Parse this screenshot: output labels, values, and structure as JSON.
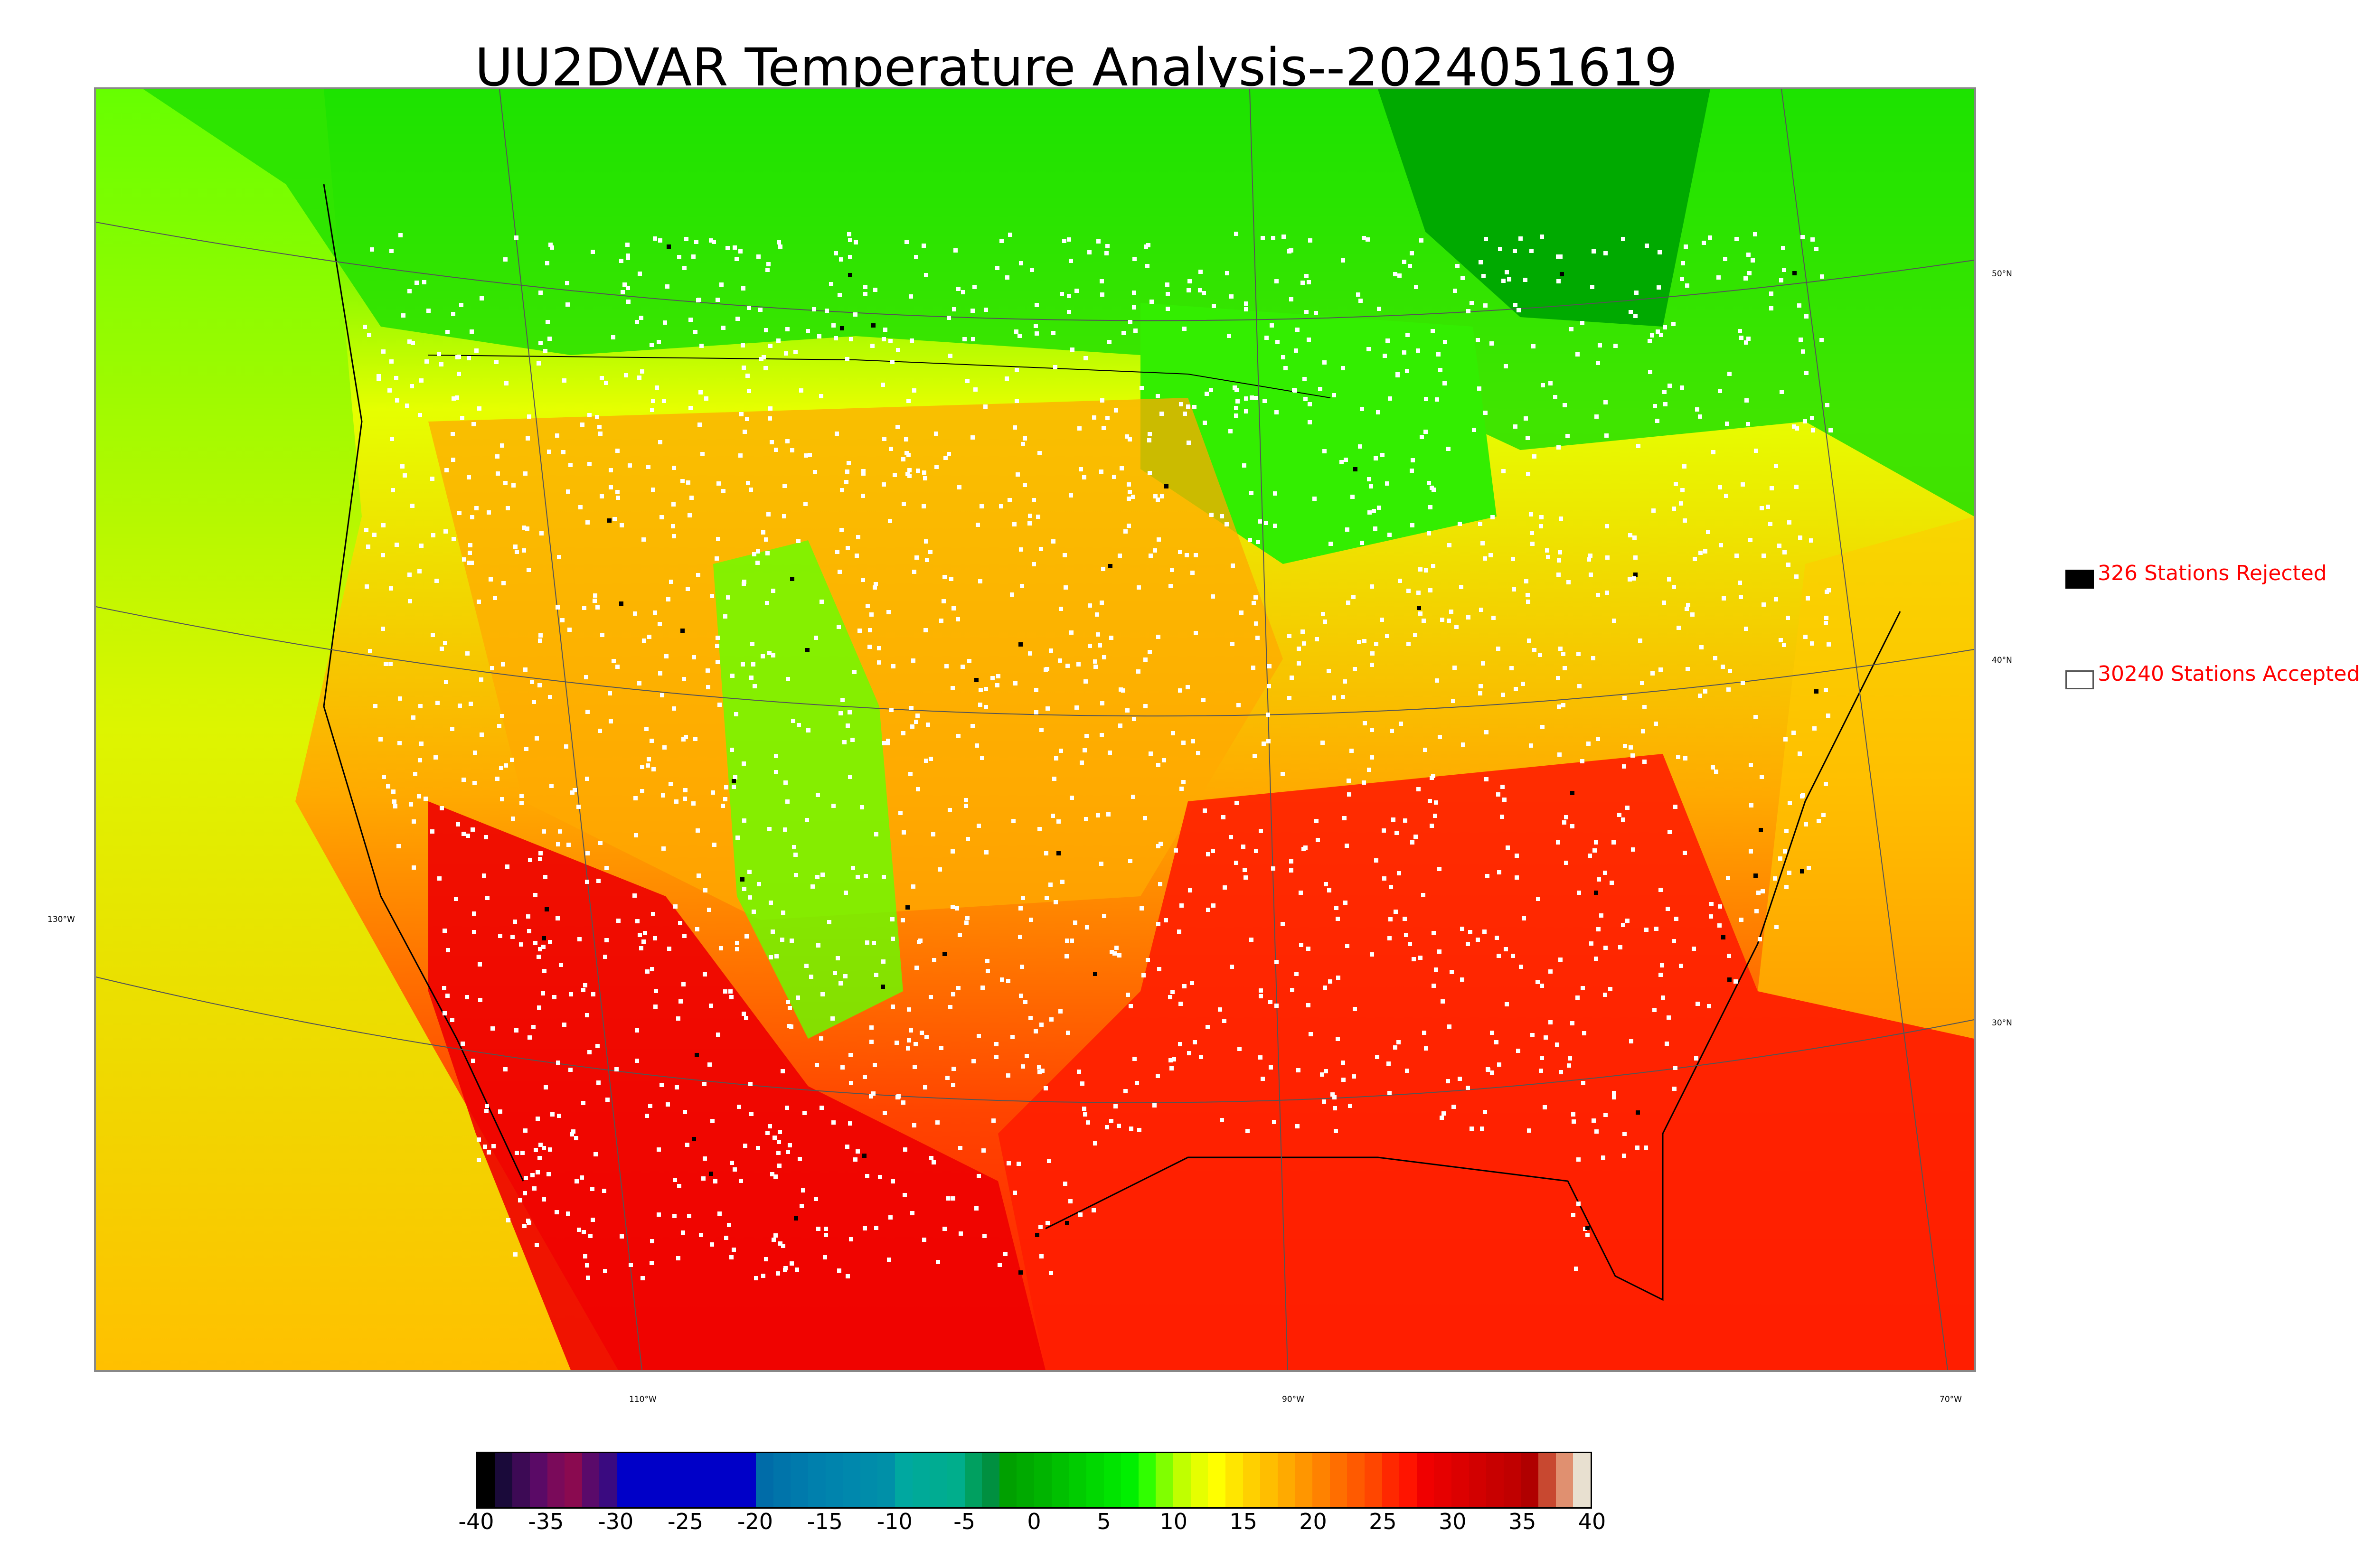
{
  "title": "UU2DVAR Temperature Analysis--2024051619",
  "legend": {
    "rejected": {
      "label": "326 Stations Rejected",
      "color": "#000000"
    },
    "accepted": {
      "label": "30240 Stations Accepted",
      "color": "#ffffff"
    }
  },
  "graticule": {
    "lat_labels": [
      "50°N",
      "40°N",
      "30°N"
    ],
    "lon_labels": [
      "130°W",
      "110°W",
      "90°W",
      "70°W"
    ]
  },
  "colorbar": {
    "min": -40,
    "max": 40,
    "ticks": [
      "-40",
      "-35",
      "-30",
      "-25",
      "-20",
      "-15",
      "-10",
      "-5",
      "0",
      "5",
      "10",
      "15",
      "20",
      "25",
      "30",
      "35",
      "40"
    ],
    "colors": [
      "#000000",
      "#1a0a3a",
      "#3d0a55",
      "#5a0a66",
      "#7a0a5a",
      "#8a0a50",
      "#5a0a6a",
      "#3a0a80",
      "#0000c8",
      "#0000c8",
      "#0000c8",
      "#0000c8",
      "#0000c8",
      "#0000c8",
      "#0000c8",
      "#0000c8",
      "#006ca8",
      "#0074aa",
      "#007aac",
      "#0080ad",
      "#0084ad",
      "#0088ad",
      "#008caa",
      "#0090a8",
      "#00a8a0",
      "#00aa98",
      "#00ac92",
      "#00ae8c",
      "#00a060",
      "#009040",
      "#00a000",
      "#00aa00",
      "#00b400",
      "#00c000",
      "#00cc00",
      "#00d800",
      "#00e400",
      "#00f000",
      "#30ff00",
      "#80ff00",
      "#c0ff00",
      "#e6ff00",
      "#ffff00",
      "#ffe600",
      "#ffd000",
      "#ffbe00",
      "#ffaa00",
      "#ff9600",
      "#ff8200",
      "#ff6e00",
      "#ff5a00",
      "#ff4600",
      "#ff2800",
      "#ff1400",
      "#f00000",
      "#e60000",
      "#dc0000",
      "#d20000",
      "#c80000",
      "#c00000",
      "#b00000",
      "#c84830",
      "#e09070",
      "#e8e0d0"
    ]
  }
}
